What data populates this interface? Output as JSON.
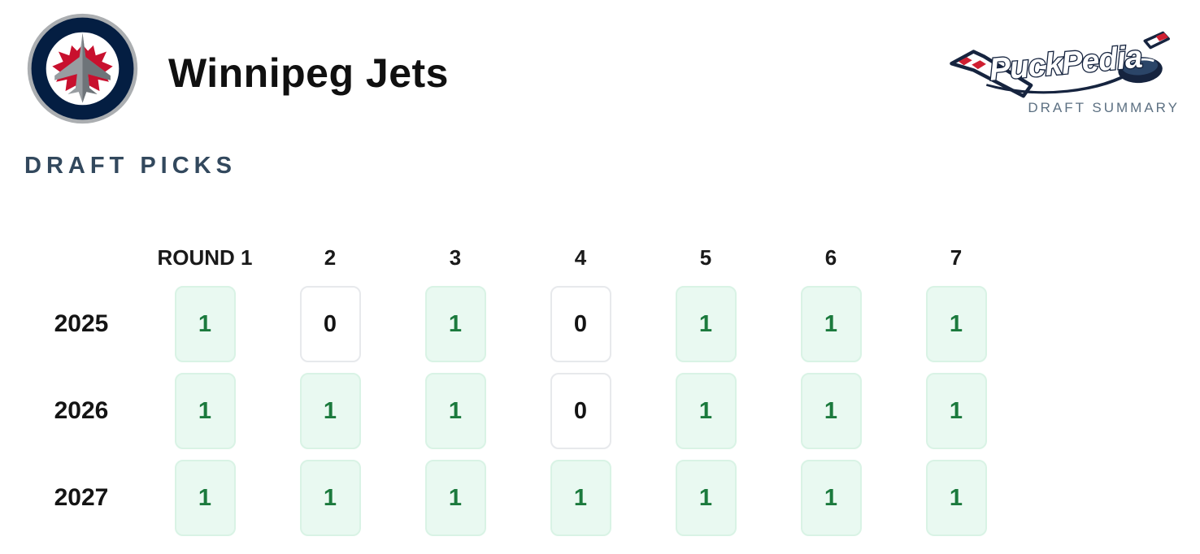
{
  "header": {
    "team_name": "Winnipeg Jets",
    "team_logo": "winnipeg-jets-logo",
    "brand_wordmark": "PuckPedia",
    "brand_subtitle": "DRAFT SUMMARY"
  },
  "section_title": "DRAFT PICKS",
  "draft_grid": {
    "column_headers": [
      "ROUND 1",
      "2",
      "3",
      "4",
      "5",
      "6",
      "7"
    ],
    "rows": [
      {
        "year": "2025",
        "picks": [
          "1",
          "0",
          "1",
          "0",
          "1",
          "1",
          "1"
        ]
      },
      {
        "year": "2026",
        "picks": [
          "1",
          "1",
          "1",
          "0",
          "1",
          "1",
          "1"
        ]
      },
      {
        "year": "2027",
        "picks": [
          "1",
          "1",
          "1",
          "1",
          "1",
          "1",
          "1"
        ]
      }
    ]
  },
  "colors": {
    "pick_has_bg": "#e9f9f1",
    "pick_has_border": "#d9f3e5",
    "pick_has_text": "#1b7a3d",
    "pick_none_border": "#e7e9ec",
    "pick_none_text": "#141414",
    "section_heading": "#32485d",
    "brand_navy": "#16243f",
    "brand_red": "#d01f31",
    "jets_navy": "#041e42",
    "jets_red": "#c8102e"
  }
}
